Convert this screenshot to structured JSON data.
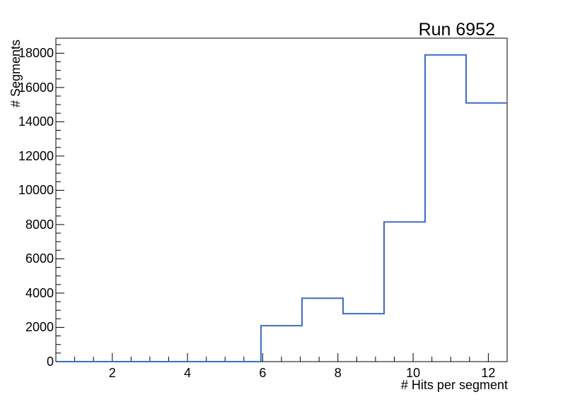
{
  "chart_data": {
    "type": "bar",
    "render_style": "root-step-histogram-outline",
    "title": "Run 6952",
    "xlabel": "# Hits per segment",
    "ylabel": "# Segments",
    "xlim": [
      0.5,
      12.5
    ],
    "ylim": [
      0,
      18880
    ],
    "bin_edges": [
      0.5,
      1.5909,
      2.6818,
      3.7727,
      4.8636,
      5.9545,
      7.0455,
      8.1364,
      9.2273,
      10.3182,
      11.4091,
      12.5
    ],
    "bin_values": [
      0,
      0,
      0,
      0,
      0,
      2100,
      3700,
      2800,
      8150,
      17900,
      15100
    ],
    "x_major_ticks": [
      2,
      4,
      6,
      8,
      10,
      12
    ],
    "x_minor_tick_step": 0.5,
    "x_minor_tick_start": 1.0,
    "x_minor_tick_end": 12.0,
    "y_major_ticks": [
      0,
      2000,
      4000,
      6000,
      8000,
      10000,
      12000,
      14000,
      16000,
      18000
    ],
    "y_minor_tick_step": 500,
    "y_minor_tick_end": 18500,
    "grid": "off",
    "legend": "none",
    "line_color": "#3f6bc5",
    "axis_color": "#000000",
    "background_color": "#ffffff"
  }
}
